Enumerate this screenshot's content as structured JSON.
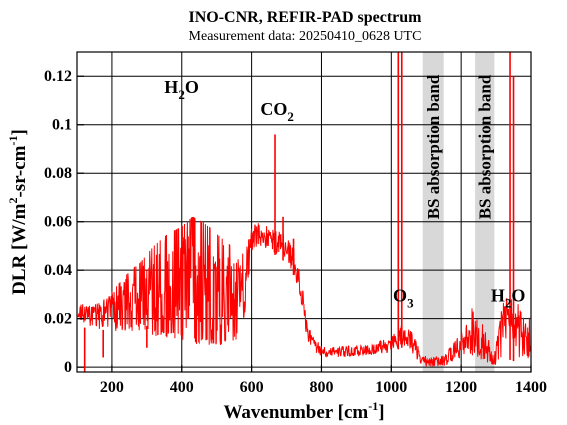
{
  "chart_data": {
    "type": "line",
    "title": "INO-CNR, REFIR-PAD spectrum",
    "subtitle": "Measurement data: 20250410_0628 UTC",
    "xlabel": {
      "main": "Wavenumber [cm",
      "sup": "-1",
      "tail": "]"
    },
    "ylabel": {
      "p1": "DLR [W/m",
      "s1": "2",
      "p2": "-sr-cm",
      "s2": "-1",
      "p3": "]"
    },
    "xlim": [
      100,
      1400
    ],
    "ylim": [
      -0.002,
      0.13
    ],
    "x_ticks": [
      200,
      400,
      600,
      800,
      1000,
      1200,
      1400
    ],
    "y_ticks": [
      0,
      0.02,
      0.04,
      0.06,
      0.08,
      0.1,
      0.12
    ],
    "y_tick_labels": [
      "0",
      "0.02",
      "0.04",
      "0.06",
      "0.08",
      "0.1",
      "0.12"
    ],
    "line_color": "#ff0000",
    "band_color": "#d8d8d8",
    "bands": [
      {
        "x0": 1090,
        "x1": 1150,
        "label": "BS absorption band"
      },
      {
        "x0": 1240,
        "x1": 1295,
        "label": "BS absorption band"
      }
    ],
    "annotations": [
      {
        "main": "H",
        "sub": "2",
        "tail": "O",
        "x": 350,
        "y": 0.113
      },
      {
        "main": "CO",
        "sub": "2",
        "tail": "",
        "x": 625,
        "y": 0.104
      },
      {
        "main": "O",
        "sub": "3",
        "tail": "",
        "x": 1005,
        "y": 0.027
      },
      {
        "main": "H",
        "sub": "2",
        "tail": "O",
        "x": 1285,
        "y": 0.027
      }
    ],
    "envelope": {
      "x": [
        105,
        130,
        160,
        200,
        240,
        280,
        320,
        360,
        400,
        430,
        460,
        500,
        540,
        580,
        600,
        620,
        640,
        660,
        680,
        700,
        720,
        740,
        760,
        780,
        800,
        850,
        900,
        950,
        1000,
        1030,
        1060,
        1090,
        1150,
        1200,
        1240,
        1295,
        1320,
        1340,
        1360,
        1380,
        1400
      ],
      "top": [
        0.027,
        0.026,
        0.027,
        0.031,
        0.038,
        0.043,
        0.05,
        0.055,
        0.058,
        0.062,
        0.06,
        0.055,
        0.05,
        0.05,
        0.059,
        0.06,
        0.059,
        0.058,
        0.057,
        0.054,
        0.05,
        0.04,
        0.02,
        0.012,
        0.01,
        0.009,
        0.009,
        0.01,
        0.013,
        0.018,
        0.015,
        0.005,
        0.005,
        0.015,
        0.03,
        0.005,
        0.03,
        0.032,
        0.028,
        0.025,
        0.022
      ],
      "bot": [
        0.017,
        0.016,
        0.015,
        0.016,
        0.018,
        0.018,
        0.016,
        0.015,
        0.014,
        0.013,
        0.012,
        0.012,
        0.012,
        0.018,
        0.045,
        0.05,
        0.048,
        0.047,
        0.045,
        0.043,
        0.038,
        0.028,
        0.01,
        0.006,
        0.004,
        0.004,
        0.004,
        0.005,
        0.006,
        0.008,
        0.005,
        0.0,
        0.0,
        0.003,
        0.003,
        0.0,
        0.004,
        0.003,
        0.002,
        0.002,
        0.002
      ]
    },
    "spikes": [
      {
        "x": 122,
        "y": -0.002
      },
      {
        "x": 175,
        "y": 0.004
      },
      {
        "x": 300,
        "y": 0.008
      },
      {
        "x": 667,
        "y": 0.096
      },
      {
        "x": 690,
        "y": 0.062
      },
      {
        "x": 720,
        "y": 0.053
      },
      {
        "x": 1020,
        "y": 0.13
      },
      {
        "x": 1030,
        "y": 0.13
      },
      {
        "x": 1340,
        "y": 0.13
      },
      {
        "x": 1350,
        "y": 0.12
      }
    ]
  }
}
